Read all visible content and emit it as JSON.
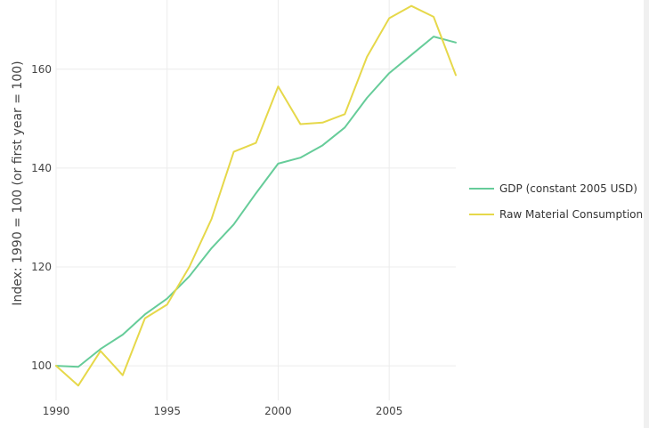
{
  "chart_data": {
    "type": "line",
    "title": "",
    "xlabel": "",
    "ylabel": "Index: 1990 = 100 (or first year = 100)",
    "xlim": [
      1990,
      2008
    ],
    "ylim": [
      93,
      174
    ],
    "xticks": [
      1990,
      1995,
      2000,
      2005
    ],
    "yticks": [
      100,
      120,
      140,
      160
    ],
    "x": [
      1990,
      1991,
      1992,
      1993,
      1994,
      1995,
      1996,
      1997,
      1998,
      1999,
      2000,
      2001,
      2002,
      2003,
      2004,
      2005,
      2006,
      2007,
      2008
    ],
    "series": [
      {
        "name": "GDP (constant 2005 USD)",
        "color": "#66cc99",
        "values": [
          100.0,
          99.8,
          103.4,
          106.3,
          110.4,
          113.6,
          118.1,
          123.8,
          128.6,
          134.9,
          140.9,
          142.1,
          144.6,
          148.2,
          154.2,
          159.2,
          162.9,
          166.6,
          165.4
        ]
      },
      {
        "name": "Raw Material Consumption",
        "color": "#e6d84a",
        "values": [
          100.0,
          96.0,
          103.0,
          98.1,
          109.6,
          112.4,
          120.0,
          129.7,
          143.3,
          145.1,
          156.5,
          148.9,
          149.2,
          150.9,
          162.5,
          170.3,
          172.8,
          170.6,
          158.8
        ]
      }
    ],
    "grid": true,
    "legend_position": "right"
  }
}
